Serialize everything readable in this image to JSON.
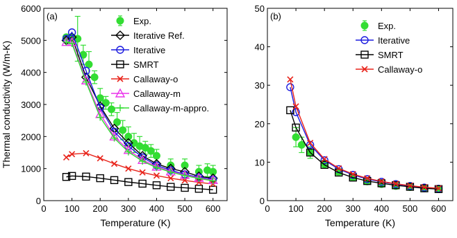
{
  "chart_data": [
    {
      "type": "line",
      "panel_label": "(a)",
      "xlabel": "Temperature (K)",
      "ylabel": "Thermal conductivity (W/m-K)",
      "xlim": [
        0,
        650
      ],
      "ylim": [
        0,
        6000
      ],
      "xticks": [
        "0",
        "100",
        "200",
        "300",
        "400",
        "500",
        "600"
      ],
      "yticks": [
        "0",
        "1000",
        "2000",
        "3000",
        "4000",
        "5000",
        "6000"
      ],
      "xtick_values": [
        0,
        100,
        200,
        300,
        400,
        500,
        600
      ],
      "ytick_values": [
        0,
        1000,
        2000,
        3000,
        4000,
        5000,
        6000
      ],
      "legend_position": "top-right",
      "grid": false,
      "series": [
        {
          "name": "Exp.",
          "style": "exp",
          "color": "#33dd33",
          "x": [
            80,
            100,
            120,
            140,
            160,
            180,
            200,
            220,
            240,
            260,
            280,
            300,
            320,
            340,
            360,
            380,
            400,
            450,
            500,
            550,
            580,
            600
          ],
          "y": [
            5100,
            5100,
            5050,
            4550,
            4250,
            3850,
            3200,
            3050,
            2850,
            2450,
            2200,
            2000,
            1800,
            1700,
            1650,
            1550,
            1400,
            1100,
            1100,
            900,
            950,
            900
          ],
          "err": [
            0,
            0,
            700,
            300,
            400,
            200,
            300,
            200,
            200,
            300,
            300,
            300,
            300,
            300,
            200,
            200,
            200,
            200,
            200,
            200,
            200,
            200
          ]
        },
        {
          "name": "Iterative Ref.",
          "style": "diamond",
          "color": "#000000",
          "x": [
            80,
            100,
            150,
            200,
            250,
            300,
            350,
            400,
            450,
            500,
            550,
            600
          ],
          "y": [
            5000,
            5100,
            3850,
            2950,
            2250,
            1800,
            1400,
            1150,
            1000,
            900,
            760,
            700
          ]
        },
        {
          "name": "Iterative",
          "style": "circle",
          "color": "#1a1adf",
          "x": [
            80,
            100,
            150,
            200,
            250,
            300,
            350,
            400,
            450,
            500,
            550,
            600
          ],
          "y": [
            5050,
            5250,
            4050,
            2900,
            2150,
            1700,
            1350,
            1100,
            950,
            820,
            730,
            660
          ]
        },
        {
          "name": "SMRT",
          "style": "square",
          "color": "#000000",
          "x": [
            80,
            100,
            150,
            200,
            250,
            300,
            350,
            400,
            450,
            500,
            550,
            600
          ],
          "y": [
            740,
            770,
            750,
            700,
            640,
            580,
            530,
            480,
            430,
            400,
            370,
            340
          ]
        },
        {
          "name": "Callaway-o",
          "style": "x",
          "color": "#e8231a",
          "x": [
            80,
            100,
            150,
            200,
            250,
            300,
            350,
            400,
            450,
            500,
            550,
            600
          ],
          "y": [
            1350,
            1450,
            1480,
            1320,
            1150,
            1000,
            880,
            780,
            700,
            630,
            570,
            520
          ]
        },
        {
          "name": "Callaway-m",
          "style": "triangle",
          "color": "#ea33ea",
          "x": [
            80,
            100,
            150,
            200,
            250,
            300,
            350,
            400,
            450,
            500,
            550,
            600
          ],
          "y": [
            4950,
            4950,
            3750,
            2700,
            2000,
            1580,
            1270,
            1060,
            910,
            800,
            710,
            640
          ]
        },
        {
          "name": "Callaway-m-appro.",
          "style": "plus",
          "color": "#33dd33",
          "x": [
            80,
            100,
            150,
            200,
            250,
            300,
            350,
            400,
            450,
            500,
            550,
            600
          ],
          "y": [
            4950,
            4900,
            3700,
            2600,
            1950,
            1520,
            1230,
            1030,
            890,
            780,
            690,
            620
          ]
        }
      ]
    },
    {
      "type": "line",
      "panel_label": "(b)",
      "xlabel": "Temperature (K)",
      "ylabel": "",
      "xlim": [
        0,
        650
      ],
      "ylim": [
        0,
        50
      ],
      "xticks": [
        "0",
        "100",
        "200",
        "300",
        "400",
        "500",
        "600"
      ],
      "yticks": [
        "0",
        "10",
        "20",
        "30",
        "40",
        "50"
      ],
      "xtick_values": [
        0,
        100,
        200,
        300,
        400,
        500,
        600
      ],
      "ytick_values": [
        0,
        10,
        20,
        30,
        40,
        50
      ],
      "legend_position": "top-right",
      "grid": false,
      "series": [
        {
          "name": "Exp.",
          "style": "exp",
          "color": "#33dd33",
          "x": [
            100,
            120,
            150,
            200,
            250,
            300,
            350,
            400,
            450,
            500,
            550,
            600
          ],
          "y": [
            16.5,
            14.5,
            12.5,
            9.5,
            7.5,
            6.0,
            5.0,
            4.3,
            3.8,
            3.5,
            3.2,
            3.0
          ],
          "err": [
            2.5,
            2.0,
            1.5,
            1.0,
            0.8,
            0.6,
            0.5,
            0.4,
            0.4,
            0.3,
            0.3,
            0.3
          ]
        },
        {
          "name": "Iterative",
          "style": "circle",
          "color": "#1a1adf",
          "x": [
            80,
            100,
            150,
            200,
            250,
            300,
            350,
            400,
            450,
            500,
            550,
            600
          ],
          "y": [
            29.5,
            23.0,
            14.5,
            10.5,
            8.2,
            6.7,
            5.6,
            4.9,
            4.3,
            3.8,
            3.4,
            3.1
          ]
        },
        {
          "name": "SMRT",
          "style": "square",
          "color": "#000000",
          "x": [
            80,
            100,
            150,
            200,
            250,
            300,
            350,
            400,
            450,
            500,
            550,
            600
          ],
          "y": [
            23.5,
            19.0,
            12.5,
            9.3,
            7.3,
            6.0,
            5.1,
            4.5,
            4.0,
            3.6,
            3.2,
            3.0
          ]
        },
        {
          "name": "Callaway-o",
          "style": "x",
          "color": "#e8231a",
          "x": [
            80,
            100,
            150,
            200,
            250,
            300,
            350,
            400,
            450,
            500,
            550,
            600
          ],
          "y": [
            31.5,
            24.5,
            15.0,
            10.8,
            8.4,
            6.9,
            5.8,
            5.0,
            4.4,
            3.9,
            3.5,
            3.2
          ]
        }
      ]
    }
  ]
}
